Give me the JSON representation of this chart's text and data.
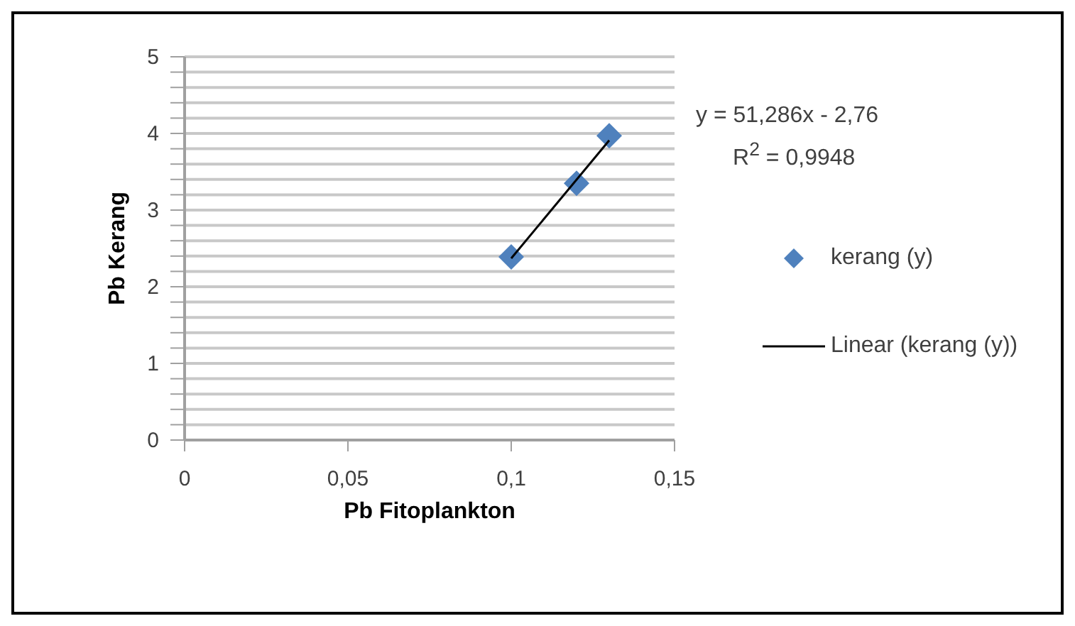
{
  "chart_data": {
    "type": "scatter",
    "xlabel": "Pb Fitoplankton",
    "ylabel": "Pb Kerang",
    "x": [
      0.1,
      0.12,
      0.13
    ],
    "series": [
      {
        "name": "kerang (y)",
        "color": "#4f81bd",
        "marker": "diamond",
        "values": [
          2.39,
          3.35,
          3.97
        ]
      },
      {
        "name": "Linear (kerang (y))",
        "type": "line",
        "color": "#000000",
        "marker": "none",
        "line_style": "solid",
        "x": [
          0.1,
          0.13
        ],
        "values": [
          2.37,
          3.91
        ]
      }
    ],
    "xlim": [
      0,
      0.15
    ],
    "xticks": [
      {
        "value": 0,
        "label": "0"
      },
      {
        "value": 0.05,
        "label": "0,05"
      },
      {
        "value": 0.1,
        "label": "0,1"
      },
      {
        "value": 0.15,
        "label": "0,15"
      }
    ],
    "ylim": [
      0,
      5
    ],
    "yticks": [
      0,
      {
        "value": 0.2,
        "label": null
      },
      {
        "value": 0.4,
        "label": null
      },
      {
        "value": 0.6,
        "label": null
      },
      {
        "value": 0.8,
        "label": null
      },
      1,
      {
        "value": 1.2,
        "label": null
      },
      {
        "value": 1.4,
        "label": null
      },
      {
        "value": 1.6,
        "label": null
      },
      {
        "value": 1.8,
        "label": null
      },
      2,
      {
        "value": 2.2,
        "label": null
      },
      {
        "value": 2.4,
        "label": null
      },
      {
        "value": 2.6,
        "label": null
      },
      {
        "value": 2.8,
        "label": null
      },
      3,
      {
        "value": 3.2,
        "label": null
      },
      {
        "value": 3.4,
        "label": null
      },
      {
        "value": 3.6,
        "label": null
      },
      {
        "value": 3.8,
        "label": null
      },
      4,
      {
        "value": 4.2,
        "label": null
      },
      {
        "value": 4.4,
        "label": null
      },
      {
        "value": 4.6,
        "label": null
      },
      {
        "value": 4.8,
        "label": null
      },
      5
    ],
    "grid": "y",
    "legend": "right",
    "annotations": [
      "y = 51,286x - 2,76",
      "R$^{2}$ = 0,9948"
    ]
  }
}
